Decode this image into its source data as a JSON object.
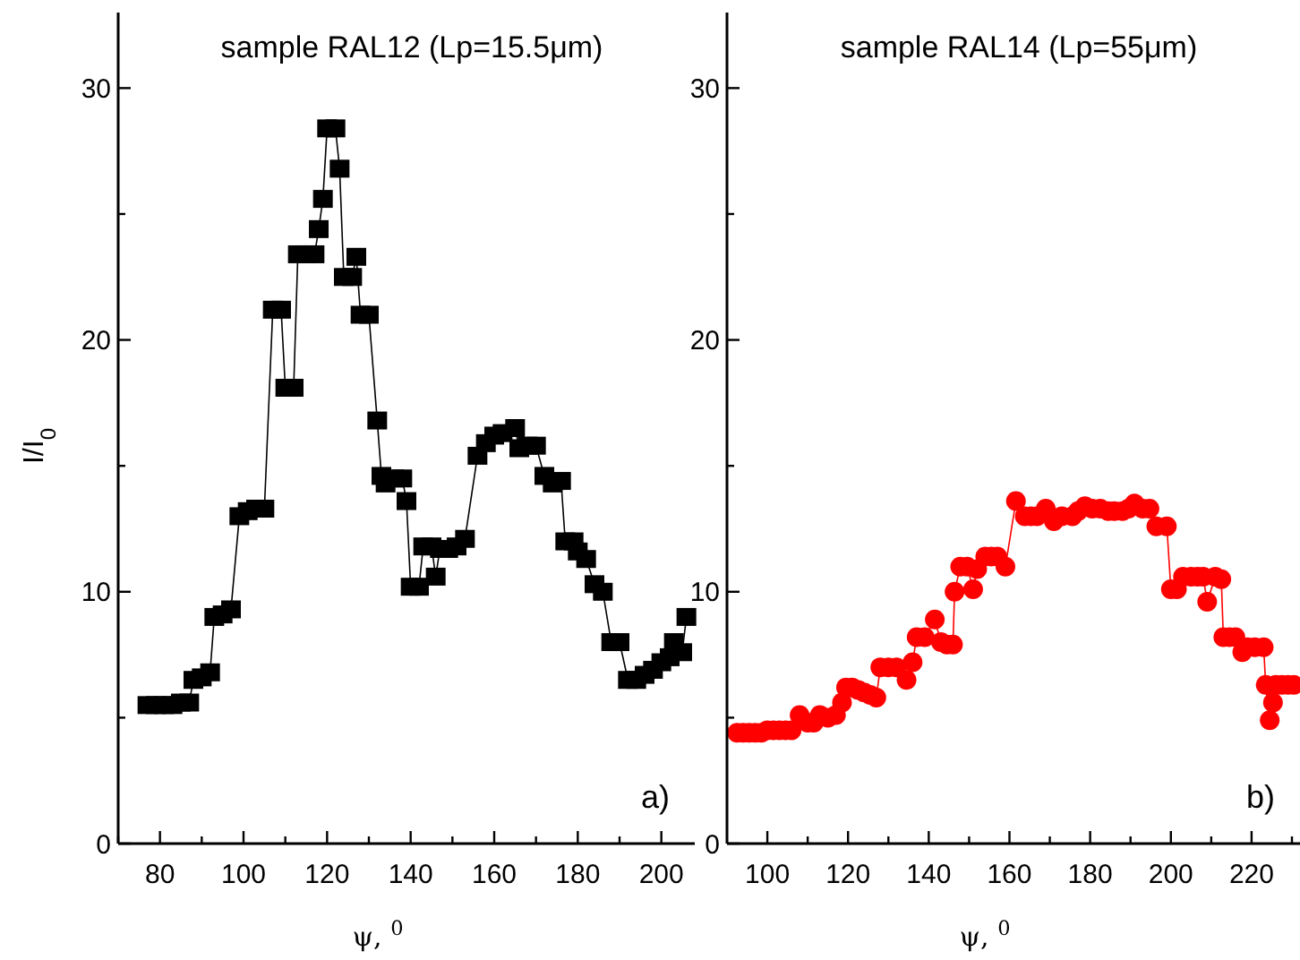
{
  "chart_data": [
    {
      "type": "line",
      "title": "sample RAL12 (Lp=15.5μm)",
      "xlabel": "ψ, $^{0}$",
      "ylabel": "I/I$_{0}$",
      "marker": "square",
      "line_style": "solid",
      "annotations": [
        "a)"
      ],
      "xlim": [
        70,
        208
      ],
      "ylim": [
        0,
        33
      ],
      "xticks": [
        {
          "value": 70,
          "label": null
        },
        80,
        {
          "value": 90,
          "label": null
        },
        100,
        {
          "value": 110,
          "label": null
        },
        120,
        {
          "value": 130,
          "label": null
        },
        140,
        {
          "value": 150,
          "label": null
        },
        160,
        {
          "value": 170,
          "label": null
        },
        180,
        {
          "value": 190,
          "label": null
        },
        200
      ],
      "yticks": [
        0,
        {
          "value": 5,
          "label": null
        },
        10,
        {
          "value": 15,
          "label": null
        },
        20,
        {
          "value": 25,
          "label": null
        },
        30
      ],
      "series": [
        {
          "color": "#000000",
          "x": [
            77,
            79,
            81,
            83,
            85,
            87,
            88,
            90,
            92,
            93,
            95,
            97,
            99,
            101,
            103,
            105,
            107,
            109,
            110,
            112,
            113,
            115,
            117,
            118,
            119,
            120,
            122,
            123,
            124,
            126,
            127,
            128,
            130,
            132,
            133,
            134,
            136,
            138,
            139,
            140,
            142,
            143,
            145,
            146,
            147,
            149,
            151,
            153,
            156,
            158,
            160,
            162,
            165,
            166,
            168,
            170,
            172,
            174,
            176,
            177,
            179,
            180,
            182,
            184,
            186,
            188,
            190,
            192,
            194,
            196,
            198,
            200,
            202,
            203,
            205,
            206
          ],
          "values": [
            5.5,
            5.5,
            5.5,
            5.5,
            5.6,
            5.6,
            6.5,
            6.6,
            6.8,
            9.0,
            9.1,
            9.3,
            13.0,
            13.2,
            13.3,
            13.3,
            21.2,
            21.2,
            18.1,
            18.1,
            23.4,
            23.4,
            23.4,
            24.4,
            25.6,
            28.4,
            28.4,
            26.8,
            22.5,
            22.5,
            23.3,
            21.0,
            21.0,
            16.8,
            14.6,
            14.3,
            14.5,
            14.5,
            13.6,
            10.2,
            10.2,
            11.8,
            11.8,
            10.6,
            11.7,
            11.7,
            11.8,
            12.1,
            15.4,
            15.9,
            16.2,
            16.3,
            16.5,
            15.7,
            15.8,
            15.8,
            14.6,
            14.3,
            14.4,
            12.0,
            12.0,
            11.6,
            11.3,
            10.3,
            10.0,
            8.0,
            8.0,
            6.5,
            6.5,
            6.7,
            6.9,
            7.2,
            7.4,
            8.0,
            7.6,
            9.0
          ]
        }
      ]
    },
    {
      "type": "line",
      "title": "sample RAL14 (Lp=55μm)",
      "xlabel": "ψ, $^{0}$",
      "marker": "circle",
      "line_style": "solid",
      "annotations": [
        "b)"
      ],
      "xlim": [
        90,
        232
      ],
      "ylim": [
        0,
        33
      ],
      "xticks": [
        100,
        {
          "value": 110,
          "label": null
        },
        120,
        {
          "value": 130,
          "label": null
        },
        140,
        {
          "value": 150,
          "label": null
        },
        160,
        {
          "value": 170,
          "label": null
        },
        180,
        {
          "value": 190,
          "label": null
        },
        200,
        {
          "value": 210,
          "label": null
        },
        220,
        {
          "value": 230,
          "label": null
        }
      ],
      "yticks": [
        0,
        {
          "value": 5,
          "label": null
        },
        10,
        {
          "value": 15,
          "label": null
        },
        20,
        {
          "value": 25,
          "label": null
        },
        30
      ],
      "series": [
        {
          "color": "#ff0000",
          "x": [
            92.5,
            94,
            95.5,
            97,
            98.5,
            100,
            101.5,
            103,
            104.5,
            106,
            108,
            110,
            111.5,
            113,
            115,
            117,
            118.5,
            119.5,
            121,
            122.5,
            124,
            125.5,
            127,
            128,
            130,
            132,
            134.5,
            136,
            137,
            139,
            141.5,
            143,
            144.5,
            146,
            146.4,
            147.8,
            149.5,
            151,
            152,
            154,
            155.5,
            157,
            159,
            161.6,
            163.8,
            165.3,
            166.8,
            169,
            171,
            173,
            175.6,
            177,
            178.7,
            180.5,
            182.5,
            184.5,
            186,
            188,
            189.5,
            191,
            193,
            194.7,
            196.4,
            199,
            200,
            201.5,
            203,
            205,
            206.6,
            208,
            209,
            211,
            212.5,
            213,
            214.5,
            216,
            217.7,
            219,
            220.8,
            223,
            223.5,
            224.5,
            225.3,
            226,
            227.5,
            229,
            230.5
          ],
          "values": [
            4.4,
            4.4,
            4.4,
            4.4,
            4.4,
            4.5,
            4.5,
            4.5,
            4.5,
            4.5,
            5.1,
            4.8,
            4.8,
            5.1,
            5.0,
            5.1,
            5.6,
            6.2,
            6.2,
            6.1,
            6.0,
            5.9,
            5.8,
            7.0,
            7.0,
            7.0,
            6.5,
            7.2,
            8.2,
            8.2,
            8.9,
            8.0,
            7.9,
            7.9,
            10.0,
            11.0,
            11.0,
            10.1,
            10.9,
            11.4,
            11.4,
            11.4,
            11.0,
            13.6,
            13.0,
            13.0,
            13.0,
            13.3,
            12.8,
            13.0,
            13.0,
            13.2,
            13.4,
            13.3,
            13.3,
            13.2,
            13.2,
            13.2,
            13.3,
            13.5,
            13.3,
            13.3,
            12.6,
            12.6,
            10.1,
            10.1,
            10.6,
            10.6,
            10.6,
            10.6,
            9.6,
            10.6,
            10.5,
            8.2,
            8.2,
            8.2,
            7.6,
            7.8,
            7.8,
            7.8,
            6.3,
            4.9,
            5.6,
            6.3,
            6.3,
            6.3,
            6.3
          ]
        }
      ]
    }
  ]
}
